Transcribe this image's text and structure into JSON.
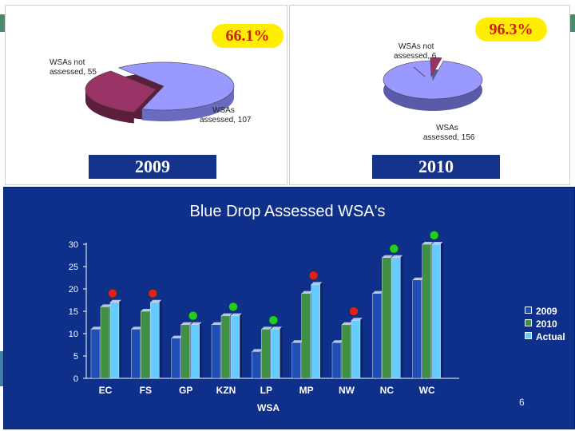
{
  "panels": {
    "left": {
      "percent": "66.1%",
      "year": "2009",
      "not_assessed_label": [
        "WSAs not",
        "assessed, 55"
      ],
      "assessed_label": [
        "WSAs",
        "assessed, 107"
      ]
    },
    "right": {
      "percent": "96.3%",
      "year": "2010",
      "not_assessed_label": [
        "WSAs not",
        "assessed, 6"
      ],
      "assessed_label": [
        "WSAs",
        "assessed, 156"
      ]
    }
  },
  "colors": {
    "pie_assessed": "#9999ff",
    "pie_not_assessed": "#993366",
    "series_2009": "#1f4fb4",
    "series_2010": "#3f8f44",
    "series_actual": "#66ccff",
    "dot_red": "#e02020",
    "dot_green": "#22cc22",
    "badge_fill": "#ffee00",
    "badge_text": "#d21a1a",
    "chart_background": "#0e2f8a"
  },
  "chart_data": [
    {
      "type": "pie",
      "title": "2009",
      "slices": [
        {
          "label": "WSAs assessed",
          "value": 107
        },
        {
          "label": "WSAs not assessed",
          "value": 55
        }
      ],
      "annotation": "66.1%"
    },
    {
      "type": "pie",
      "title": "2010",
      "slices": [
        {
          "label": "WSAs assessed",
          "value": 156
        },
        {
          "label": "WSAs not assessed",
          "value": 6
        }
      ],
      "annotation": "96.3%"
    },
    {
      "type": "bar",
      "title": "Blue Drop Assessed WSA's",
      "xlabel": "WSA",
      "ylabel": "",
      "ylim": [
        0,
        30
      ],
      "yticks": [
        0,
        5,
        10,
        15,
        20,
        25,
        30
      ],
      "categories": [
        "EC",
        "FS",
        "GP",
        "KZN",
        "LP",
        "MP",
        "NW",
        "NC",
        "WC"
      ],
      "series": [
        {
          "name": "2009",
          "values": [
            11,
            11,
            9,
            12,
            6,
            8,
            8,
            19,
            22
          ]
        },
        {
          "name": "2010",
          "values": [
            16,
            15,
            12,
            14,
            11,
            19,
            12,
            27,
            30
          ]
        },
        {
          "name": "Actual",
          "values": [
            17,
            17,
            12,
            14,
            11,
            21,
            13,
            27,
            30
          ]
        }
      ],
      "markers": [
        {
          "category": "EC",
          "color": "red",
          "y": 19
        },
        {
          "category": "FS",
          "color": "red",
          "y": 19
        },
        {
          "category": "GP",
          "color": "green",
          "y": 14
        },
        {
          "category": "KZN",
          "color": "green",
          "y": 16
        },
        {
          "category": "LP",
          "color": "green",
          "y": 13
        },
        {
          "category": "MP",
          "color": "red",
          "y": 23
        },
        {
          "category": "NW",
          "color": "red",
          "y": 15
        },
        {
          "category": "NC",
          "color": "green",
          "y": 29
        },
        {
          "category": "WC",
          "color": "green",
          "y": 32
        }
      ],
      "legend": [
        "2009",
        "2010",
        "Actual"
      ],
      "legend_position": "right",
      "grid": false
    }
  ],
  "footer": {
    "page_number": "6"
  }
}
